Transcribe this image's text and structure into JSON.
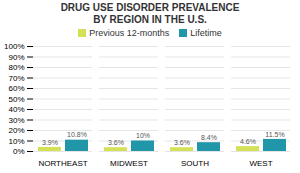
{
  "chart_data": {
    "type": "bar",
    "title": "DRUG USE DISORDER PREVALENCE\nBY REGION IN THE U.S.",
    "categories": [
      "NORTHEAST",
      "MIDWEST",
      "SOUTH",
      "WEST"
    ],
    "series": [
      {
        "name": "Previous 12-months",
        "color": "#d4e157",
        "values": [
          3.9,
          3.6,
          3.6,
          4.6
        ],
        "value_labels": [
          "3.9%",
          "3.6%",
          "3.6%",
          "4.6%"
        ]
      },
      {
        "name": "Lifetime",
        "color": "#2196a8",
        "values": [
          10.8,
          10.0,
          8.4,
          11.5
        ],
        "value_labels": [
          "10.8%",
          "10%",
          "8.4%",
          "11.5%"
        ]
      }
    ],
    "ylim": [
      0,
      100
    ],
    "yticks": [
      {
        "value": 0,
        "label": "0%"
      },
      {
        "value": 10,
        "label": "10%"
      },
      {
        "value": 20,
        "label": "20%"
      },
      {
        "value": 30,
        "label": "30%"
      },
      {
        "value": 40,
        "label": "40%"
      },
      {
        "value": 50,
        "label": "50%"
      },
      {
        "value": 60,
        "label": "60%"
      },
      {
        "value": 70,
        "label": "70%"
      },
      {
        "value": 80,
        "label": "80%"
      },
      {
        "value": 90,
        "label": "90%"
      },
      {
        "value": 100,
        "label": "100%"
      }
    ],
    "grid": true,
    "legend": "top",
    "data_labels": true
  }
}
